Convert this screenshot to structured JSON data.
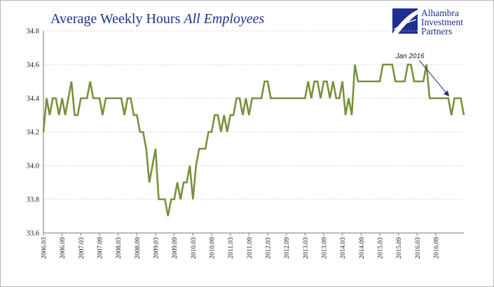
{
  "chart_data": {
    "type": "line",
    "title": "Average Weekly Hours ",
    "title_italic": "All Employees",
    "xlabel": "",
    "ylabel": "",
    "ylim": [
      33.6,
      34.8
    ],
    "yticks": [
      "34.8",
      "34.6",
      "34.4",
      "34.2",
      "34.0",
      "33.8",
      "33.6"
    ],
    "grid": true,
    "line_color": "#76923c",
    "xtick_labels": [
      "2006.03",
      "2006.09",
      "2007.03",
      "2007.09",
      "2008.03",
      "2008.09",
      "2009.03",
      "2009.09",
      "2010.03",
      "2010.09",
      "2011.03",
      "2011.09",
      "2012.03",
      "2012.09",
      "2013.03",
      "2013.09",
      "2014.03",
      "2014.09",
      "2015.03",
      "2015.09",
      "2016.03",
      "2016.09"
    ],
    "series": [
      {
        "values": [
          34.2,
          34.4,
          34.3,
          34.4,
          34.4,
          34.3,
          34.4,
          34.3,
          34.4,
          34.5,
          34.3,
          34.3,
          34.4,
          34.4,
          34.4,
          34.5,
          34.4,
          34.4,
          34.4,
          34.3,
          34.4,
          34.4,
          34.4,
          34.4,
          34.4,
          34.4,
          34.3,
          34.4,
          34.4,
          34.3,
          34.3,
          34.2,
          34.2,
          34.1,
          33.9,
          34.0,
          34.1,
          33.8,
          33.8,
          33.8,
          33.7,
          33.8,
          33.8,
          33.9,
          33.8,
          33.9,
          33.9,
          34.0,
          33.8,
          34.0,
          34.1,
          34.1,
          34.1,
          34.2,
          34.2,
          34.3,
          34.3,
          34.2,
          34.3,
          34.2,
          34.3,
          34.3,
          34.4,
          34.4,
          34.3,
          34.4,
          34.3,
          34.4,
          34.4,
          34.4,
          34.4,
          34.5,
          34.5,
          34.4,
          34.4,
          34.4,
          34.4,
          34.4,
          34.4,
          34.4,
          34.4,
          34.4,
          34.4,
          34.4,
          34.4,
          34.5,
          34.4,
          34.5,
          34.5,
          34.4,
          34.5,
          34.5,
          34.4,
          34.5,
          34.4,
          34.4,
          34.5,
          34.3,
          34.4,
          34.3,
          34.6,
          34.5,
          34.5,
          34.5,
          34.5,
          34.5,
          34.5,
          34.5,
          34.5,
          34.6,
          34.6,
          34.6,
          34.6,
          34.5,
          34.5,
          34.5,
          34.5,
          34.6,
          34.6,
          34.5,
          34.5,
          34.5,
          34.5,
          34.6,
          34.4,
          34.4,
          34.4,
          34.4,
          34.4,
          34.4,
          34.4,
          34.3,
          34.4,
          34.4,
          34.4,
          34.3
        ]
      }
    ],
    "annotation": {
      "text": "Jan 2016",
      "point_index": 118
    }
  },
  "logo": {
    "line1": "Alhambra",
    "line2": "Investment",
    "line3": "Partners",
    "colors": {
      "primary": "#1f2f8f"
    }
  }
}
